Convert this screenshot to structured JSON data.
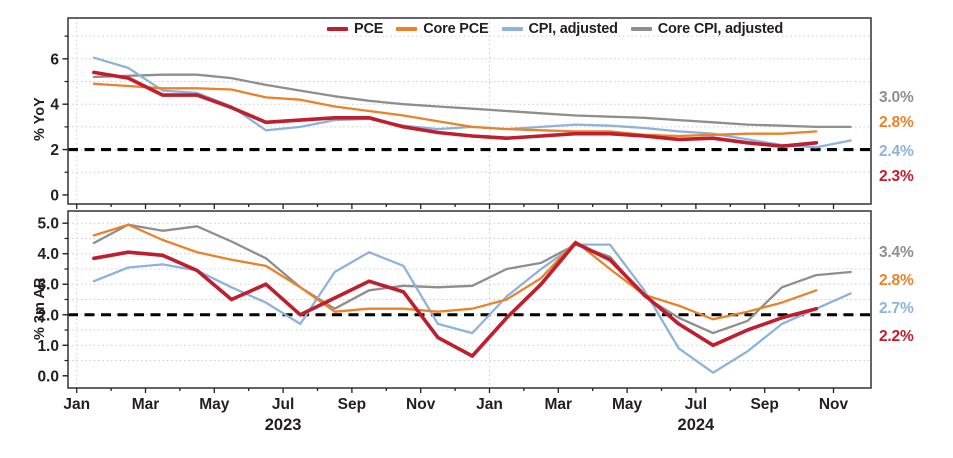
{
  "page": {
    "background": "#ffffff",
    "text_color": "#231f20"
  },
  "colors": {
    "PCE": "#be1e2d",
    "Core PCE": "#e8832a",
    "CPI, adjusted": "#8db3dd",
    "Core CPI, adjusted": "#8e8e8c",
    "reference_line": "#000000",
    "panel_border": "#3f3f3f",
    "gridline": "#cccccc"
  },
  "x_axis": {
    "tick_labels": [
      "Jan",
      "Mar",
      "May",
      "Jul",
      "Sep",
      "Nov",
      "Jan",
      "Mar",
      "May",
      "Jul",
      "Sep",
      "Nov"
    ],
    "year_labels": [
      "2023",
      "2024"
    ]
  },
  "chart_data": [
    {
      "type": "line",
      "panel": "top",
      "ylabel": "% YoY",
      "ylim": [
        0,
        7
      ],
      "yticks": [
        0,
        2,
        4,
        6
      ],
      "grid": "dotted",
      "legend_position": "top",
      "reference_line": 2,
      "months": [
        "2023-01",
        "2023-02",
        "2023-03",
        "2023-04",
        "2023-05",
        "2023-06",
        "2023-07",
        "2023-08",
        "2023-09",
        "2023-10",
        "2023-11",
        "2023-12",
        "2024-01",
        "2024-02",
        "2024-03",
        "2024-04",
        "2024-05",
        "2024-06",
        "2024-07",
        "2024-08",
        "2024-09",
        "2024-10",
        "2024-11"
      ],
      "series": [
        {
          "name": "PCE",
          "color": "#be1e2d",
          "values": [
            5.4,
            5.15,
            4.4,
            4.4,
            3.85,
            3.2,
            3.3,
            3.4,
            3.4,
            3.0,
            2.75,
            2.6,
            2.5,
            2.6,
            2.7,
            2.7,
            2.6,
            2.45,
            2.5,
            2.3,
            2.15,
            2.3
          ]
        },
        {
          "name": "Core PCE",
          "color": "#e8832a",
          "values": [
            4.9,
            4.8,
            4.7,
            4.7,
            4.65,
            4.3,
            4.2,
            3.9,
            3.7,
            3.5,
            3.25,
            3.0,
            2.9,
            2.85,
            2.8,
            2.8,
            2.65,
            2.6,
            2.65,
            2.7,
            2.7,
            2.8
          ]
        },
        {
          "name": "CPI, adjusted",
          "color": "#8db3dd",
          "values": [
            6.05,
            5.6,
            4.6,
            4.5,
            3.9,
            2.85,
            3.0,
            3.3,
            3.35,
            3.05,
            2.9,
            3.0,
            2.9,
            3.0,
            3.1,
            3.05,
            2.95,
            2.8,
            2.7,
            2.45,
            2.2,
            2.1,
            2.4
          ]
        },
        {
          "name": "Core CPI, adjusted",
          "color": "#8e8e8c",
          "values": [
            5.2,
            5.25,
            5.3,
            5.3,
            5.15,
            4.85,
            4.6,
            4.35,
            4.15,
            4.0,
            3.9,
            3.8,
            3.7,
            3.6,
            3.5,
            3.45,
            3.4,
            3.3,
            3.2,
            3.1,
            3.05,
            3.0,
            3.0
          ]
        }
      ],
      "end_labels": [
        {
          "text": "3.0%",
          "series": "Core CPI, adjusted"
        },
        {
          "text": "2.8%",
          "series": "Core PCE"
        },
        {
          "text": "2.4%",
          "series": "CPI, adjusted"
        },
        {
          "text": "2.3%",
          "series": "PCE"
        }
      ]
    },
    {
      "type": "line",
      "panel": "bottom",
      "ylabel": "% 3m AR",
      "ylim": [
        0,
        5
      ],
      "yticks": [
        0,
        1,
        2,
        3,
        4,
        5
      ],
      "grid": "dotted",
      "reference_line": 2,
      "months": [
        "2023-01",
        "2023-02",
        "2023-03",
        "2023-04",
        "2023-05",
        "2023-06",
        "2023-07",
        "2023-08",
        "2023-09",
        "2023-10",
        "2023-11",
        "2023-12",
        "2024-01",
        "2024-02",
        "2024-03",
        "2024-04",
        "2024-05",
        "2024-06",
        "2024-07",
        "2024-08",
        "2024-09",
        "2024-10",
        "2024-11"
      ],
      "series": [
        {
          "name": "PCE",
          "color": "#be1e2d",
          "values": [
            3.85,
            4.05,
            3.95,
            3.45,
            2.5,
            3.0,
            2.0,
            2.55,
            3.1,
            2.75,
            1.25,
            0.65,
            1.9,
            3.0,
            4.35,
            3.8,
            2.65,
            1.7,
            1.0,
            1.5,
            1.9,
            2.2
          ]
        },
        {
          "name": "Core PCE",
          "color": "#e8832a",
          "values": [
            4.6,
            4.95,
            4.45,
            4.05,
            3.8,
            3.6,
            2.9,
            2.1,
            2.2,
            2.2,
            2.1,
            2.2,
            2.5,
            3.2,
            4.4,
            3.5,
            2.65,
            2.3,
            1.85,
            2.1,
            2.4,
            2.8
          ]
        },
        {
          "name": "CPI, adjusted",
          "color": "#8db3dd",
          "values": [
            3.1,
            3.55,
            3.65,
            3.45,
            2.9,
            2.4,
            1.7,
            3.4,
            4.05,
            3.6,
            1.7,
            1.4,
            2.6,
            3.5,
            4.3,
            4.3,
            2.8,
            0.9,
            0.1,
            0.8,
            1.7,
            2.2,
            2.7
          ]
        },
        {
          "name": "Core CPI, adjusted",
          "color": "#8e8e8c",
          "values": [
            4.35,
            4.95,
            4.75,
            4.9,
            4.4,
            3.85,
            2.9,
            2.2,
            2.8,
            2.95,
            2.9,
            2.95,
            3.5,
            3.7,
            4.3,
            3.9,
            2.6,
            1.9,
            1.4,
            1.8,
            2.9,
            3.3,
            3.4
          ]
        }
      ],
      "end_labels": [
        {
          "text": "3.4%",
          "series": "Core CPI, adjusted"
        },
        {
          "text": "2.8%",
          "series": "Core PCE"
        },
        {
          "text": "2.7%",
          "series": "CPI, adjusted"
        },
        {
          "text": "2.2%",
          "series": "PCE"
        }
      ]
    }
  ]
}
